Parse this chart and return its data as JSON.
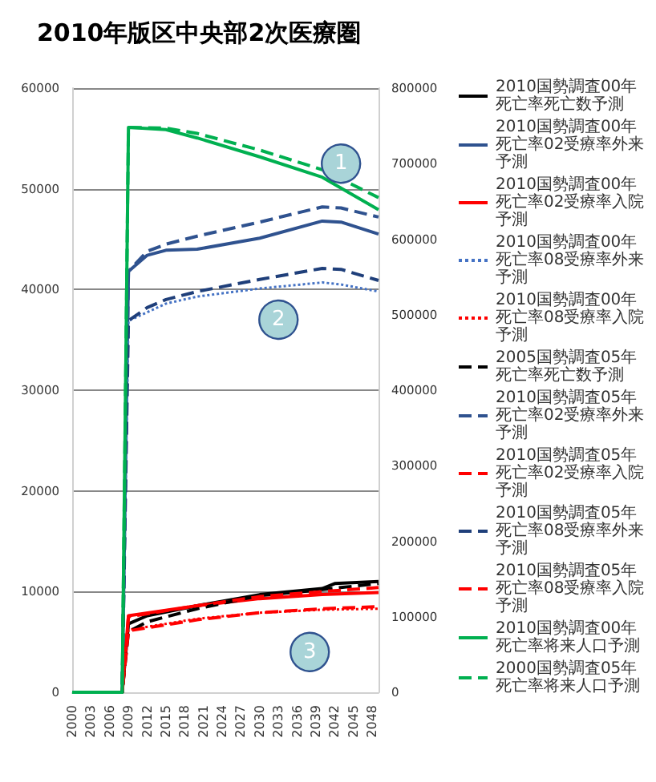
{
  "chart_data": {
    "type": "line",
    "title": "2010年版区中央部2次医療圏",
    "xlim": [
      2000,
      2049
    ],
    "xticks": [
      2000,
      2003,
      2006,
      2009,
      2012,
      2015,
      2018,
      2021,
      2024,
      2027,
      2030,
      2033,
      2036,
      2039,
      2042,
      2045,
      2048
    ],
    "ylim": [
      0,
      60000
    ],
    "yticks": [
      0,
      10000,
      20000,
      30000,
      40000,
      50000,
      60000
    ],
    "y2lim": [
      0,
      800000
    ],
    "y2ticks": [
      0,
      100000,
      200000,
      300000,
      400000,
      500000,
      600000,
      700000,
      800000
    ],
    "grid": "y",
    "legend": "right",
    "marker": "none",
    "annotations": [
      {
        "text": "1",
        "x": 2043,
        "y": 52500
      },
      {
        "text": "2",
        "x": 2033,
        "y": 37000
      },
      {
        "text": "3",
        "x": 2038,
        "y": 4000
      }
    ],
    "series": [
      {
        "name": "2010国勢調査00年死亡率死亡数予測",
        "color": "#000000",
        "line_style": "solid",
        "x": [
          2000,
          2008,
          2009,
          2012,
          2020,
          2030,
          2040,
          2042,
          2049
        ],
        "values": [
          0,
          0,
          6800,
          7600,
          8600,
          9700,
          10300,
          10800,
          11000
        ]
      },
      {
        "name": "2010国勢調査00年死亡率02受療率外来予測",
        "color": "#2f528f",
        "line_style": "solid",
        "x": [
          2000,
          2008,
          2009,
          2012,
          2015,
          2020,
          2030,
          2040,
          2043,
          2049
        ],
        "values": [
          0,
          0,
          41800,
          43400,
          43900,
          44000,
          45100,
          46800,
          46700,
          45500
        ]
      },
      {
        "name": "2010国勢調査00年死亡率02受療率入院予測",
        "color": "#ff0000",
        "line_style": "solid",
        "x": [
          2000,
          2008,
          2009,
          2020,
          2030,
          2040,
          2049
        ],
        "values": [
          0,
          0,
          7600,
          8600,
          9300,
          9700,
          9900
        ]
      },
      {
        "name": "2010国勢調査00年死亡率08受療率外来予測",
        "color": "#4472c4",
        "line_style": "dotted",
        "x": [
          2000,
          2008,
          2009,
          2015,
          2020,
          2030,
          2040,
          2043,
          2049
        ],
        "values": [
          0,
          0,
          36900,
          38600,
          39300,
          40100,
          40700,
          40500,
          39800
        ]
      },
      {
        "name": "2010国勢調査00年死亡率08受療率入院予測",
        "color": "#ff0000",
        "line_style": "dotted",
        "x": [
          2000,
          2008,
          2009,
          2020,
          2030,
          2040,
          2049
        ],
        "values": [
          0,
          0,
          6200,
          7300,
          7900,
          8200,
          8300
        ]
      },
      {
        "name": "2005国勢調査05年死亡率死亡数予測",
        "color": "#000000",
        "line_style": "dashed",
        "x": [
          2000,
          2008,
          2009,
          2012,
          2020,
          2030,
          2040,
          2049
        ],
        "values": [
          0,
          0,
          6000,
          7000,
          8300,
          9600,
          10200,
          10800
        ]
      },
      {
        "name": "2010国勢調査05年死亡率02受療率外来予測",
        "color": "#2f528f",
        "line_style": "dashed",
        "x": [
          2000,
          2008,
          2009,
          2012,
          2015,
          2020,
          2030,
          2040,
          2043,
          2049
        ],
        "values": [
          0,
          0,
          41800,
          43800,
          44500,
          45300,
          46700,
          48200,
          48100,
          47200
        ]
      },
      {
        "name": "2010国勢調査05年死亡率02受療率入院予測",
        "color": "#ff0000",
        "line_style": "dashed",
        "x": [
          2000,
          2008,
          2009,
          2020,
          2030,
          2040,
          2049
        ],
        "values": [
          0,
          0,
          7500,
          8600,
          9500,
          10000,
          10400
        ]
      },
      {
        "name": "2010国勢調査05年死亡率08受療率外来予測",
        "color": "#1f3f7a",
        "line_style": "dashed",
        "x": [
          2000,
          2008,
          2009,
          2012,
          2015,
          2020,
          2030,
          2040,
          2043,
          2049
        ],
        "values": [
          0,
          0,
          36900,
          38200,
          39000,
          39800,
          41000,
          42100,
          42000,
          40900
        ]
      },
      {
        "name": "2010国勢調査05年死亡率08受療率入院予測",
        "color": "#ff0000",
        "line_style": "dashed",
        "x": [
          2000,
          2008,
          2009,
          2020,
          2030,
          2040,
          2049
        ],
        "values": [
          0,
          0,
          6100,
          7200,
          7900,
          8300,
          8500
        ]
      },
      {
        "name": "2010国勢調査00年死亡率将来人口予測",
        "color": "#00b050",
        "line_style": "solid",
        "axis": "y2",
        "x": [
          2000,
          2008,
          2009,
          2015,
          2020,
          2030,
          2040,
          2049
        ],
        "values": [
          0,
          0,
          748000,
          745000,
          734000,
          709000,
          682000,
          639000
        ]
      },
      {
        "name": "2000国勢調査05年死亡率将来人口予測",
        "color": "#00b050",
        "line_style": "dashed",
        "axis": "y2",
        "x": [
          2000,
          2008,
          2009,
          2015,
          2020,
          2030,
          2040,
          2049
        ],
        "values": [
          0,
          0,
          748000,
          747000,
          740000,
          718000,
          692000,
          655000
        ]
      }
    ]
  }
}
